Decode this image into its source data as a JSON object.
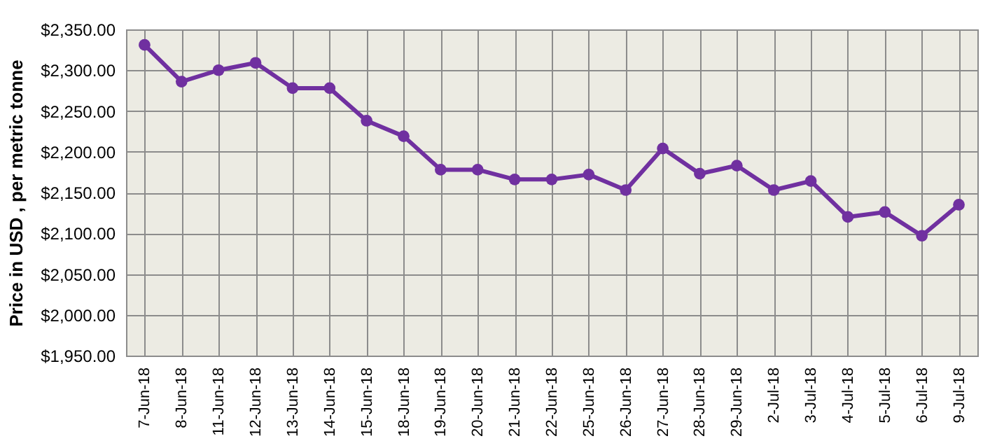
{
  "chart_data": {
    "type": "line",
    "ylabel": "Price in USD , per metric tonne",
    "categories": [
      "7-Jun-18",
      "8-Jun-18",
      "11-Jun-18",
      "12-Jun-18",
      "13-Jun-18",
      "14-Jun-18",
      "15-Jun-18",
      "18-Jun-18",
      "19-Jun-18",
      "20-Jun-18",
      "21-Jun-18",
      "22-Jun-18",
      "25-Jun-18",
      "26-Jun-18",
      "27-Jun-18",
      "28-Jun-18",
      "29-Jun-18",
      "2-Jul-18",
      "3-Jul-18",
      "4-Jul-18",
      "5-Jul-18",
      "6-Jul-18",
      "9-Jul-18"
    ],
    "series": [
      {
        "color": "#7030a0",
        "values": [
          2331,
          2286,
          2300,
          2309,
          2278,
          2278,
          2238,
          2219,
          2178,
          2178,
          2166,
          2166,
          2172,
          2153,
          2204,
          2173,
          2183,
          2153,
          2164,
          2120,
          2126,
          2097,
          2135
        ]
      }
    ],
    "ylim": [
      1950,
      2350
    ],
    "yticks": [
      {
        "value": 1950,
        "label": "$1,950.00"
      },
      {
        "value": 2000,
        "label": "$2,000.00"
      },
      {
        "value": 2050,
        "label": "$2,050.00"
      },
      {
        "value": 2100,
        "label": "$2,100.00"
      },
      {
        "value": 2150,
        "label": "$2,150.00"
      },
      {
        "value": 2200,
        "label": "$2,200.00"
      },
      {
        "value": 2250,
        "label": "$2,250.00"
      },
      {
        "value": 2300,
        "label": "$2,300.00"
      },
      {
        "value": 2350,
        "label": "$2,350.00"
      }
    ],
    "grid": true,
    "marker": "circle",
    "line_style": "solid"
  }
}
